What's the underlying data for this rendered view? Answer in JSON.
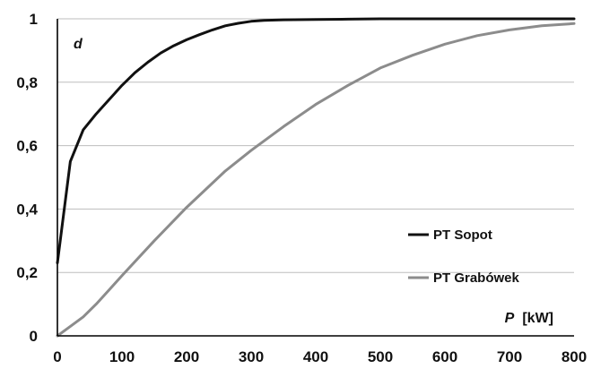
{
  "chart_data": {
    "type": "line",
    "xlim": [
      0,
      800
    ],
    "ylim": [
      0,
      1
    ],
    "x_ticks": [
      "0",
      "100",
      "200",
      "300",
      "400",
      "500",
      "600",
      "700",
      "800"
    ],
    "y_ticks": [
      "0",
      "0,2",
      "0,4",
      "0,6",
      "0,8",
      "1"
    ],
    "grid": "horizontal",
    "ylabel": "d",
    "xlabel_symbol": "P",
    "xlabel_unit": "[kW]",
    "legend_placement": "right",
    "series": [
      {
        "name": "PT Sopot",
        "color": "#111111",
        "x": [
          0,
          20,
          40,
          60,
          80,
          100,
          120,
          140,
          160,
          180,
          200,
          220,
          240,
          260,
          280,
          300,
          320,
          350,
          400,
          450,
          500,
          600,
          700,
          800
        ],
        "y": [
          0.23,
          0.55,
          0.65,
          0.7,
          0.745,
          0.79,
          0.83,
          0.863,
          0.892,
          0.915,
          0.934,
          0.95,
          0.965,
          0.978,
          0.986,
          0.992,
          0.995,
          0.997,
          0.998,
          0.999,
          1.0,
          1.0,
          1.0,
          1.0
        ]
      },
      {
        "name": "PT Grabówek",
        "color": "#8c8c8c",
        "x": [
          0,
          20,
          40,
          60,
          80,
          100,
          150,
          200,
          260,
          300,
          350,
          400,
          450,
          500,
          550,
          600,
          650,
          700,
          750,
          800
        ],
        "y": [
          0.0,
          0.03,
          0.06,
          0.1,
          0.145,
          0.19,
          0.3,
          0.405,
          0.52,
          0.585,
          0.66,
          0.73,
          0.79,
          0.845,
          0.885,
          0.92,
          0.947,
          0.965,
          0.978,
          0.985
        ]
      }
    ]
  }
}
